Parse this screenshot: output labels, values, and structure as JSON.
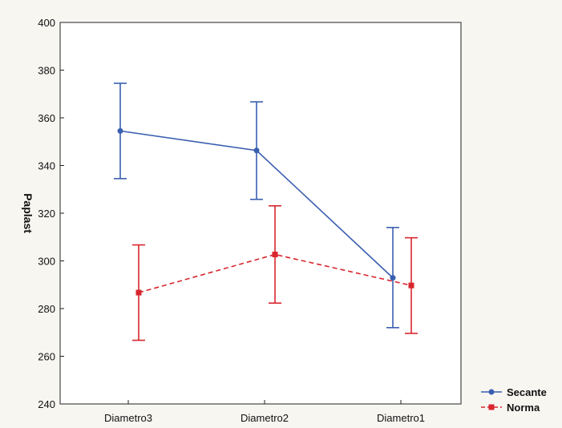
{
  "chart_data": {
    "type": "line",
    "title": "",
    "xlabel": "",
    "ylabel": "Paplast",
    "categories": [
      "Diametro3",
      "Diametro2",
      "Diametro1"
    ],
    "ylim": [
      240,
      400
    ],
    "yticks": [
      240,
      260,
      280,
      300,
      320,
      340,
      360,
      380,
      400
    ],
    "grid": false,
    "legend_position": "bottom-right, outside plot",
    "series": [
      {
        "name": "Secante",
        "color": "#3a5fb0",
        "line_style": "solid",
        "marker": "circle",
        "values": [
          354.5,
          346.3,
          292.9
        ],
        "error_low": [
          334.5,
          325.8,
          272.0
        ],
        "error_high": [
          374.5,
          366.7,
          314.0
        ]
      },
      {
        "name": "Norma",
        "color": "#d8262e",
        "line_style": "dashed",
        "marker": "square",
        "values": [
          286.7,
          302.7,
          289.7
        ],
        "error_low": [
          266.7,
          282.3,
          269.6
        ],
        "error_high": [
          306.7,
          323.1,
          309.7
        ]
      }
    ]
  }
}
